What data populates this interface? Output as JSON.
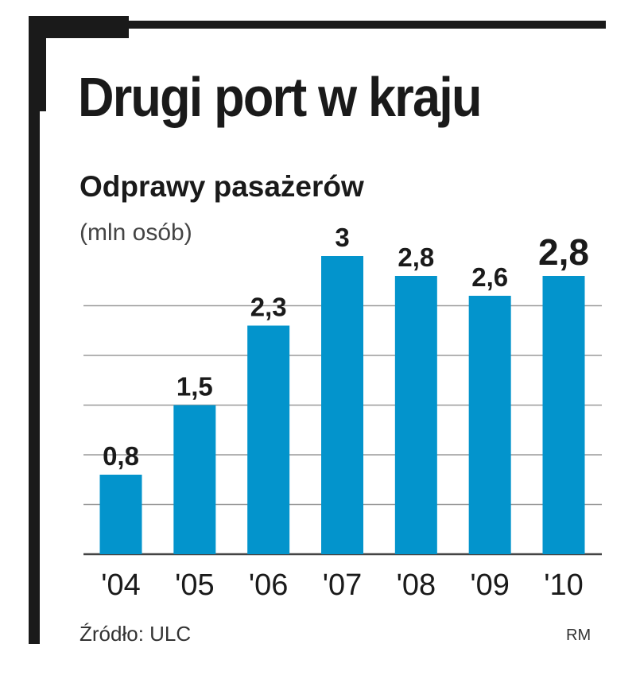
{
  "header": {
    "title": "Drugi port w kraju",
    "subtitle": "Odprawy pasażerów",
    "unit": "(mln osób)"
  },
  "footer": {
    "source": "Źródło: ULC",
    "credit": "RM"
  },
  "colors": {
    "bar": "#0394cc",
    "grid": "#9a9a9a",
    "frame": "#1a1a1a",
    "text": "#1a1a1a"
  },
  "chart_data": {
    "type": "bar",
    "categories": [
      "'04",
      "'05",
      "'06",
      "'07",
      "'08",
      "'09",
      "'10"
    ],
    "values": [
      0.8,
      1.5,
      2.3,
      3,
      2.8,
      2.6,
      2.8
    ],
    "data_labels": [
      "0,8",
      "1,5",
      "2,3",
      "3",
      "2,8",
      "2,6",
      "2,8"
    ],
    "highlight_last": true,
    "title": "Drugi port w kraju",
    "subtitle": "Odprawy pasażerów",
    "ylabel": "(mln osób)",
    "xlabel": "",
    "ylim": [
      0,
      3
    ],
    "grid": true,
    "legend": "none"
  }
}
